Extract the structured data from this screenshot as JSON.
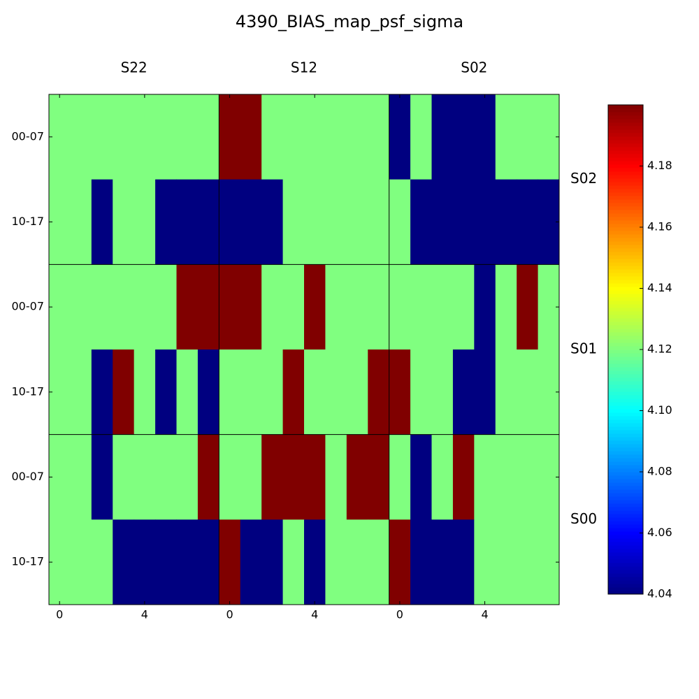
{
  "chart_data": {
    "type": "heatmap",
    "title": "4390_BIAS_map_psf_sigma",
    "x_groups": [
      "S22",
      "S12",
      "S02"
    ],
    "y_groups": [
      "S02",
      "S01",
      "S00"
    ],
    "y_categories": [
      "00-07",
      "10-17"
    ],
    "xlim": [
      -0.5,
      7.5
    ],
    "xticks": [
      0,
      4
    ],
    "colormap": "jet",
    "clim": [
      4.04,
      4.2
    ],
    "cticks": [
      4.04,
      4.06,
      4.08,
      {
        "value": 4.1,
        "label": "4.10"
      },
      4.12,
      4.14,
      4.16,
      4.18
    ],
    "values": [
      [
        4.12,
        4.12,
        4.12,
        4.12,
        4.12,
        4.12,
        4.12,
        4.12,
        4.2,
        4.2,
        4.12,
        4.12,
        4.12,
        4.12,
        4.12,
        4.12,
        4.04,
        4.12,
        4.04,
        4.04,
        4.04,
        4.12,
        4.12,
        4.12
      ],
      [
        4.12,
        4.12,
        4.04,
        4.12,
        4.12,
        4.04,
        4.04,
        4.04,
        4.04,
        4.04,
        4.04,
        4.12,
        4.12,
        4.12,
        4.12,
        4.12,
        4.12,
        4.04,
        4.04,
        4.04,
        4.04,
        4.04,
        4.04,
        4.04
      ],
      [
        4.12,
        4.12,
        4.12,
        4.12,
        4.12,
        4.12,
        4.2,
        4.2,
        4.2,
        4.2,
        4.12,
        4.12,
        4.2,
        4.12,
        4.12,
        4.12,
        4.12,
        4.12,
        4.12,
        4.12,
        4.04,
        4.12,
        4.2,
        4.12
      ],
      [
        4.12,
        4.12,
        4.04,
        4.2,
        4.12,
        4.04,
        4.12,
        4.04,
        4.12,
        4.12,
        4.12,
        4.2,
        4.12,
        4.12,
        4.12,
        4.2,
        4.2,
        4.12,
        4.12,
        4.04,
        4.04,
        4.12,
        4.12,
        4.12
      ],
      [
        4.12,
        4.12,
        4.04,
        4.12,
        4.12,
        4.12,
        4.12,
        4.2,
        4.12,
        4.12,
        4.2,
        4.2,
        4.2,
        4.12,
        4.2,
        4.2,
        4.12,
        4.04,
        4.12,
        4.2,
        4.12,
        4.12,
        4.12,
        4.12
      ],
      [
        4.12,
        4.12,
        4.12,
        4.04,
        4.04,
        4.04,
        4.04,
        4.04,
        4.2,
        4.04,
        4.04,
        4.12,
        4.04,
        4.12,
        4.12,
        4.12,
        4.2,
        4.04,
        4.04,
        4.04,
        4.12,
        4.12,
        4.12,
        4.12
      ]
    ]
  }
}
